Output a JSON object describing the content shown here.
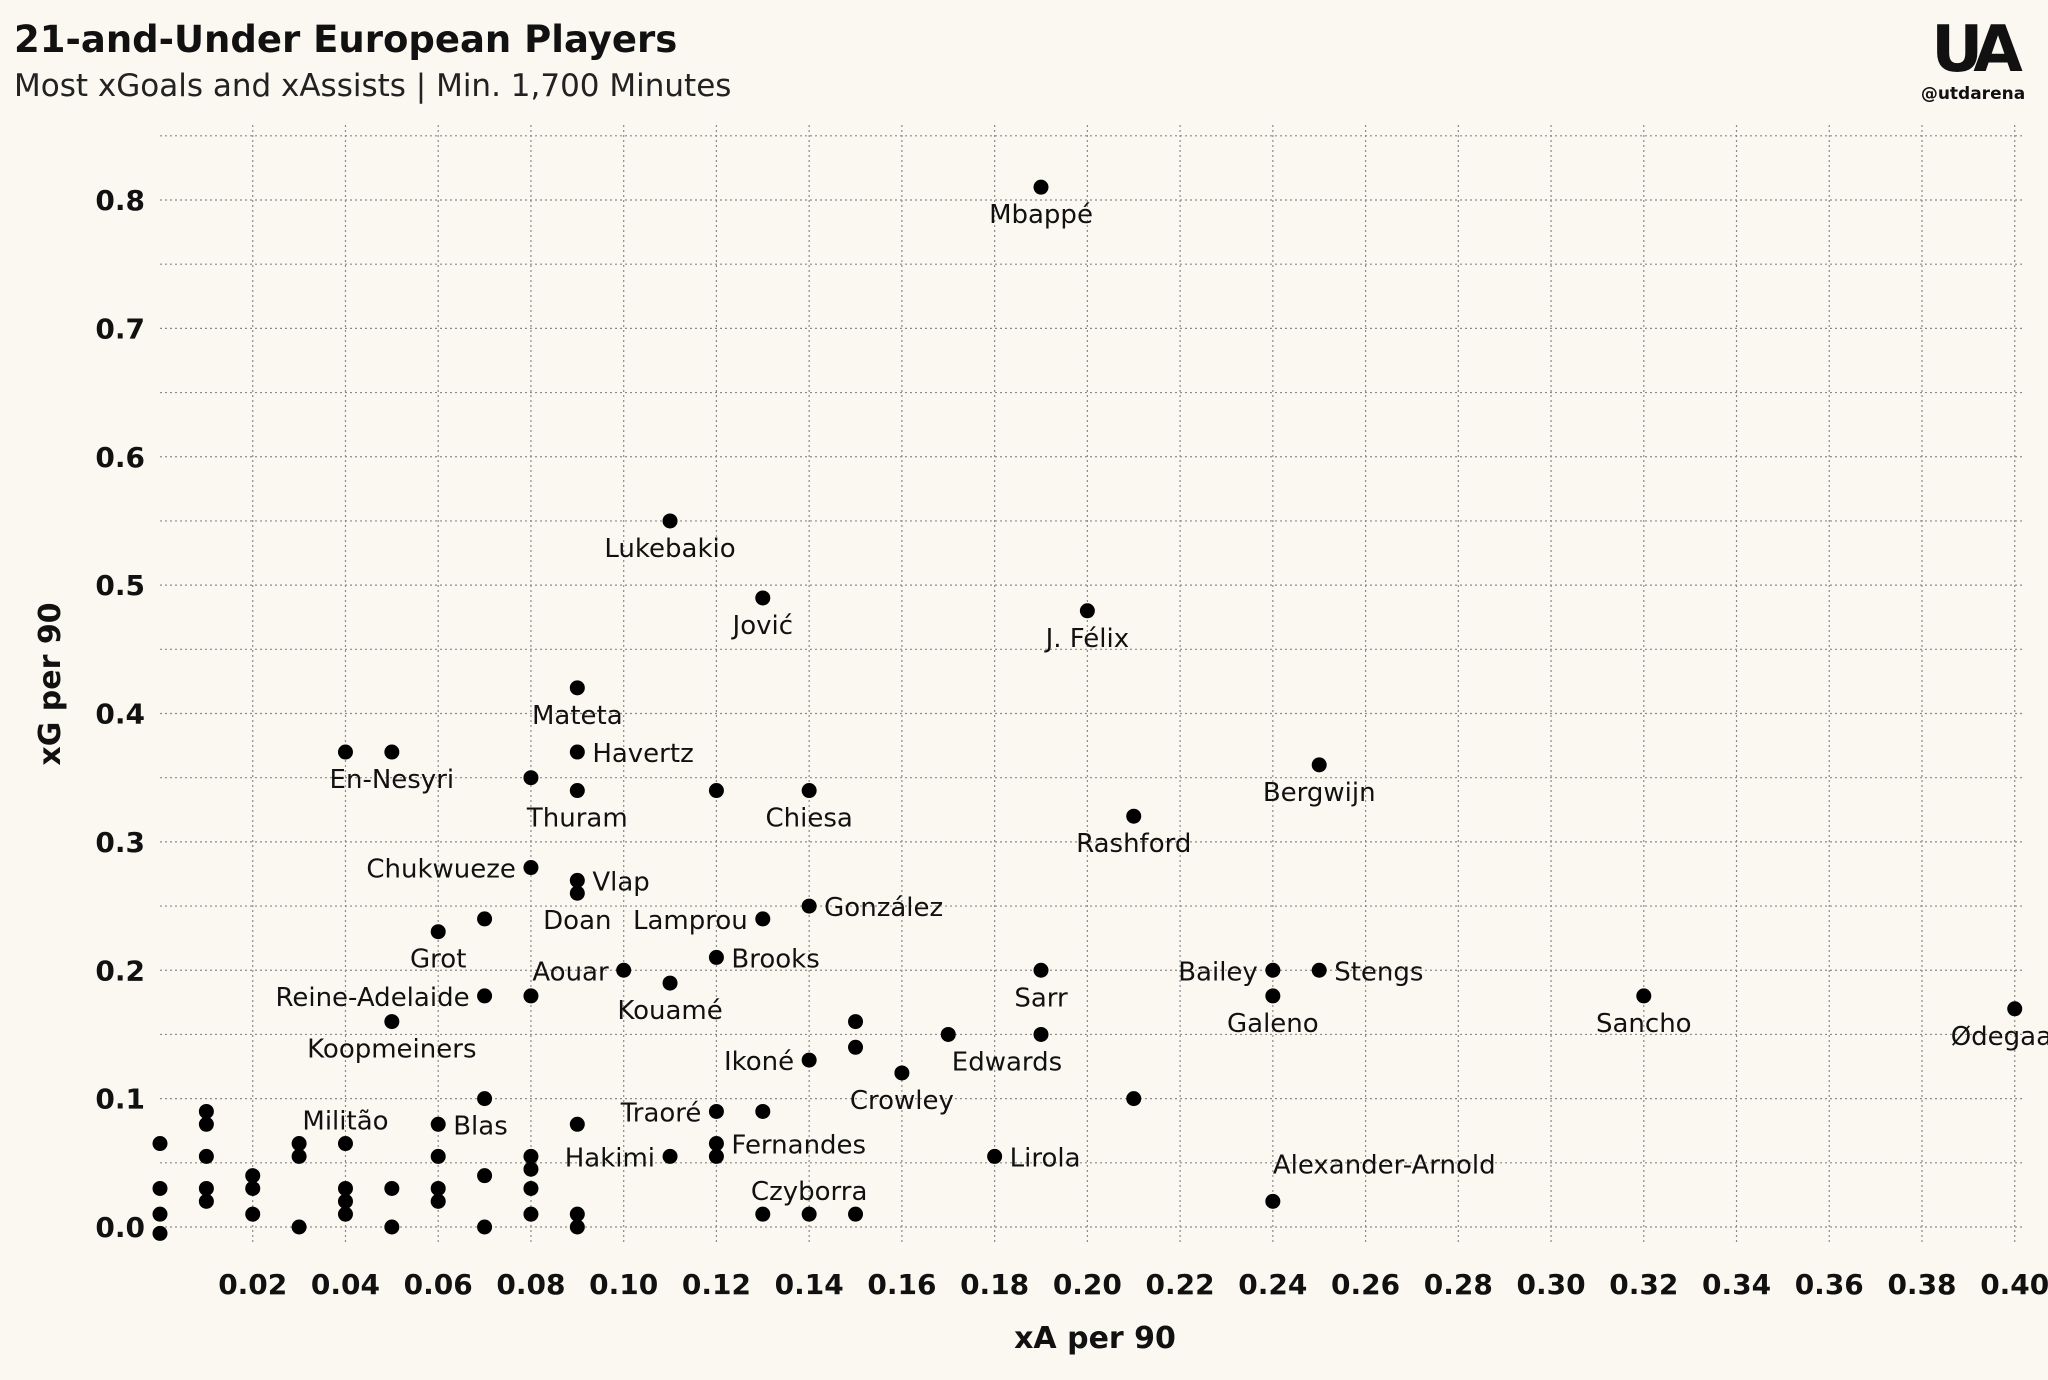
{
  "header": {
    "title": "21-and-Under European Players",
    "subtitle": "Most xGoals and xAssists | Min. 1,700 Minutes"
  },
  "brand": {
    "logo_text": "UA",
    "handle": "@utdarena"
  },
  "colors": {
    "background": "#fbf8f1",
    "point": "#000000",
    "grid": "#8a8a8a",
    "text": "#111111"
  },
  "chart_data": {
    "type": "scatter",
    "title": "21-and-Under European Players",
    "subtitle": "Most xGoals and xAssists | Min. 1,700 Minutes",
    "xlabel": "xA per 90",
    "ylabel": "xG per 90",
    "xlim": [
      0.0,
      0.42
    ],
    "ylim": [
      -0.015,
      0.85
    ],
    "grid": true,
    "xticks": [
      0.02,
      0.04,
      0.06,
      0.08,
      0.1,
      0.12,
      0.14,
      0.16,
      0.18,
      0.2,
      0.22,
      0.24,
      0.26,
      0.28,
      0.3,
      0.32,
      0.34,
      0.36,
      0.38,
      0.4
    ],
    "xtick_labels": [
      "0.02",
      "0.04",
      "0.06",
      "0.08",
      "0.10",
      "0.12",
      "0.14",
      "0.16",
      "0.18",
      "0.20",
      "0.22",
      "0.24",
      "0.26",
      "0.28",
      "0.30",
      "0.32",
      "0.34",
      "0.36",
      "0.38",
      "0.40"
    ],
    "yticks": [
      0.0,
      0.1,
      0.2,
      0.3,
      0.4,
      0.5,
      0.6,
      0.7,
      0.8
    ],
    "ytick_labels": [
      "0.0",
      "0.1",
      "0.2",
      "0.3",
      "0.4",
      "0.5",
      "0.6",
      "0.7",
      "0.8"
    ],
    "points": [
      {
        "x": 0.19,
        "y": 0.81,
        "label": "Mbappé",
        "pos": "below"
      },
      {
        "x": 0.11,
        "y": 0.55,
        "label": "Lukebakio",
        "pos": "below"
      },
      {
        "x": 0.13,
        "y": 0.49,
        "label": "Jović",
        "pos": "below"
      },
      {
        "x": 0.2,
        "y": 0.48,
        "label": "J. Félix",
        "pos": "below"
      },
      {
        "x": 0.09,
        "y": 0.42,
        "label": "Mateta",
        "pos": "below"
      },
      {
        "x": 0.04,
        "y": 0.37,
        "label": "",
        "pos": "none"
      },
      {
        "x": 0.05,
        "y": 0.37,
        "label": "En-Nesyri",
        "pos": "below"
      },
      {
        "x": 0.09,
        "y": 0.37,
        "label": "Havertz",
        "pos": "right"
      },
      {
        "x": 0.08,
        "y": 0.35,
        "label": "",
        "pos": "none"
      },
      {
        "x": 0.09,
        "y": 0.34,
        "label": "Thuram",
        "pos": "below"
      },
      {
        "x": 0.12,
        "y": 0.34,
        "label": "",
        "pos": "none"
      },
      {
        "x": 0.14,
        "y": 0.34,
        "label": "Chiesa",
        "pos": "below"
      },
      {
        "x": 0.25,
        "y": 0.36,
        "label": "Bergwijn",
        "pos": "below"
      },
      {
        "x": 0.21,
        "y": 0.32,
        "label": "Rashford",
        "pos": "below"
      },
      {
        "x": 0.08,
        "y": 0.28,
        "label": "Chukwueze",
        "pos": "left"
      },
      {
        "x": 0.09,
        "y": 0.27,
        "label": "Vlap",
        "pos": "right"
      },
      {
        "x": 0.09,
        "y": 0.26,
        "label": "Doan",
        "pos": "below"
      },
      {
        "x": 0.14,
        "y": 0.25,
        "label": "González",
        "pos": "right"
      },
      {
        "x": 0.13,
        "y": 0.24,
        "label": "Lamprou",
        "pos": "left"
      },
      {
        "x": 0.07,
        "y": 0.24,
        "label": "",
        "pos": "none"
      },
      {
        "x": 0.06,
        "y": 0.23,
        "label": "Grot",
        "pos": "below"
      },
      {
        "x": 0.12,
        "y": 0.21,
        "label": "Brooks",
        "pos": "right"
      },
      {
        "x": 0.1,
        "y": 0.2,
        "label": "Aouar",
        "pos": "left"
      },
      {
        "x": 0.11,
        "y": 0.19,
        "label": "Kouamé",
        "pos": "below"
      },
      {
        "x": 0.07,
        "y": 0.18,
        "label": "Reine-Adelaide",
        "pos": "left"
      },
      {
        "x": 0.08,
        "y": 0.18,
        "label": "",
        "pos": "none"
      },
      {
        "x": 0.19,
        "y": 0.2,
        "label": "Sarr",
        "pos": "below"
      },
      {
        "x": 0.24,
        "y": 0.2,
        "label": "Bailey",
        "pos": "left"
      },
      {
        "x": 0.25,
        "y": 0.2,
        "label": "Stengs",
        "pos": "right"
      },
      {
        "x": 0.24,
        "y": 0.18,
        "label": "Galeno",
        "pos": "below"
      },
      {
        "x": 0.32,
        "y": 0.18,
        "label": "Sancho",
        "pos": "below"
      },
      {
        "x": 0.4,
        "y": 0.17,
        "label": "Ødegaard",
        "pos": "below"
      },
      {
        "x": 0.05,
        "y": 0.16,
        "label": "Koopmeiners",
        "pos": "below"
      },
      {
        "x": 0.15,
        "y": 0.16,
        "label": "",
        "pos": "none"
      },
      {
        "x": 0.17,
        "y": 0.15,
        "label": "",
        "pos": "none"
      },
      {
        "x": 0.19,
        "y": 0.15,
        "label": "Edwards",
        "pos": "below-left"
      },
      {
        "x": 0.15,
        "y": 0.14,
        "label": "",
        "pos": "none"
      },
      {
        "x": 0.14,
        "y": 0.13,
        "label": "Ikoné",
        "pos": "left"
      },
      {
        "x": 0.16,
        "y": 0.12,
        "label": "Crowley",
        "pos": "below"
      },
      {
        "x": 0.21,
        "y": 0.1,
        "label": "",
        "pos": "none"
      },
      {
        "x": 0.07,
        "y": 0.1,
        "label": "",
        "pos": "none"
      },
      {
        "x": 0.04,
        "y": 0.065,
        "label": "Militão",
        "pos": "above"
      },
      {
        "x": 0.06,
        "y": 0.08,
        "label": "Blas",
        "pos": "right"
      },
      {
        "x": 0.09,
        "y": 0.08,
        "label": "",
        "pos": "none"
      },
      {
        "x": 0.12,
        "y": 0.09,
        "label": "Traoré",
        "pos": "left"
      },
      {
        "x": 0.13,
        "y": 0.09,
        "label": "",
        "pos": "none"
      },
      {
        "x": 0.12,
        "y": 0.065,
        "label": "Fernandes",
        "pos": "right"
      },
      {
        "x": 0.12,
        "y": 0.055,
        "label": "",
        "pos": "none"
      },
      {
        "x": 0.11,
        "y": 0.055,
        "label": "Hakimi",
        "pos": "left"
      },
      {
        "x": 0.18,
        "y": 0.055,
        "label": "Lirola",
        "pos": "right"
      },
      {
        "x": 0.24,
        "y": 0.02,
        "label": "Alexander-Arnold",
        "pos": "above-right"
      },
      {
        "x": 0.14,
        "y": 0.01,
        "label": "Czyborra",
        "pos": "above"
      },
      {
        "x": 0.13,
        "y": 0.01,
        "label": "",
        "pos": "none"
      },
      {
        "x": 0.15,
        "y": 0.01,
        "label": "",
        "pos": "none"
      },
      {
        "x": 0.0,
        "y": 0.065,
        "label": "",
        "pos": "none"
      },
      {
        "x": 0.0,
        "y": 0.03,
        "label": "",
        "pos": "none"
      },
      {
        "x": 0.0,
        "y": 0.01,
        "label": "",
        "pos": "none"
      },
      {
        "x": 0.0,
        "y": -0.005,
        "label": "",
        "pos": "none"
      },
      {
        "x": 0.01,
        "y": 0.09,
        "label": "",
        "pos": "none"
      },
      {
        "x": 0.01,
        "y": 0.08,
        "label": "",
        "pos": "none"
      },
      {
        "x": 0.01,
        "y": 0.055,
        "label": "",
        "pos": "none"
      },
      {
        "x": 0.01,
        "y": 0.03,
        "label": "",
        "pos": "none"
      },
      {
        "x": 0.01,
        "y": 0.02,
        "label": "",
        "pos": "none"
      },
      {
        "x": 0.02,
        "y": 0.04,
        "label": "",
        "pos": "none"
      },
      {
        "x": 0.02,
        "y": 0.03,
        "label": "",
        "pos": "none"
      },
      {
        "x": 0.02,
        "y": 0.01,
        "label": "",
        "pos": "none"
      },
      {
        "x": 0.03,
        "y": 0.065,
        "label": "",
        "pos": "none"
      },
      {
        "x": 0.03,
        "y": 0.055,
        "label": "",
        "pos": "none"
      },
      {
        "x": 0.03,
        "y": 0.0,
        "label": "",
        "pos": "none"
      },
      {
        "x": 0.04,
        "y": 0.03,
        "label": "",
        "pos": "none"
      },
      {
        "x": 0.04,
        "y": 0.02,
        "label": "",
        "pos": "none"
      },
      {
        "x": 0.04,
        "y": 0.01,
        "label": "",
        "pos": "none"
      },
      {
        "x": 0.05,
        "y": 0.03,
        "label": "",
        "pos": "none"
      },
      {
        "x": 0.05,
        "y": 0.0,
        "label": "",
        "pos": "none"
      },
      {
        "x": 0.06,
        "y": 0.055,
        "label": "",
        "pos": "none"
      },
      {
        "x": 0.06,
        "y": 0.03,
        "label": "",
        "pos": "none"
      },
      {
        "x": 0.06,
        "y": 0.02,
        "label": "",
        "pos": "none"
      },
      {
        "x": 0.07,
        "y": 0.04,
        "label": "",
        "pos": "none"
      },
      {
        "x": 0.07,
        "y": 0.0,
        "label": "",
        "pos": "none"
      },
      {
        "x": 0.08,
        "y": 0.055,
        "label": "",
        "pos": "none"
      },
      {
        "x": 0.08,
        "y": 0.045,
        "label": "",
        "pos": "none"
      },
      {
        "x": 0.08,
        "y": 0.03,
        "label": "",
        "pos": "none"
      },
      {
        "x": 0.08,
        "y": 0.01,
        "label": "",
        "pos": "none"
      },
      {
        "x": 0.09,
        "y": 0.01,
        "label": "",
        "pos": "none"
      },
      {
        "x": 0.09,
        "y": 0.0,
        "label": "",
        "pos": "none"
      }
    ]
  }
}
